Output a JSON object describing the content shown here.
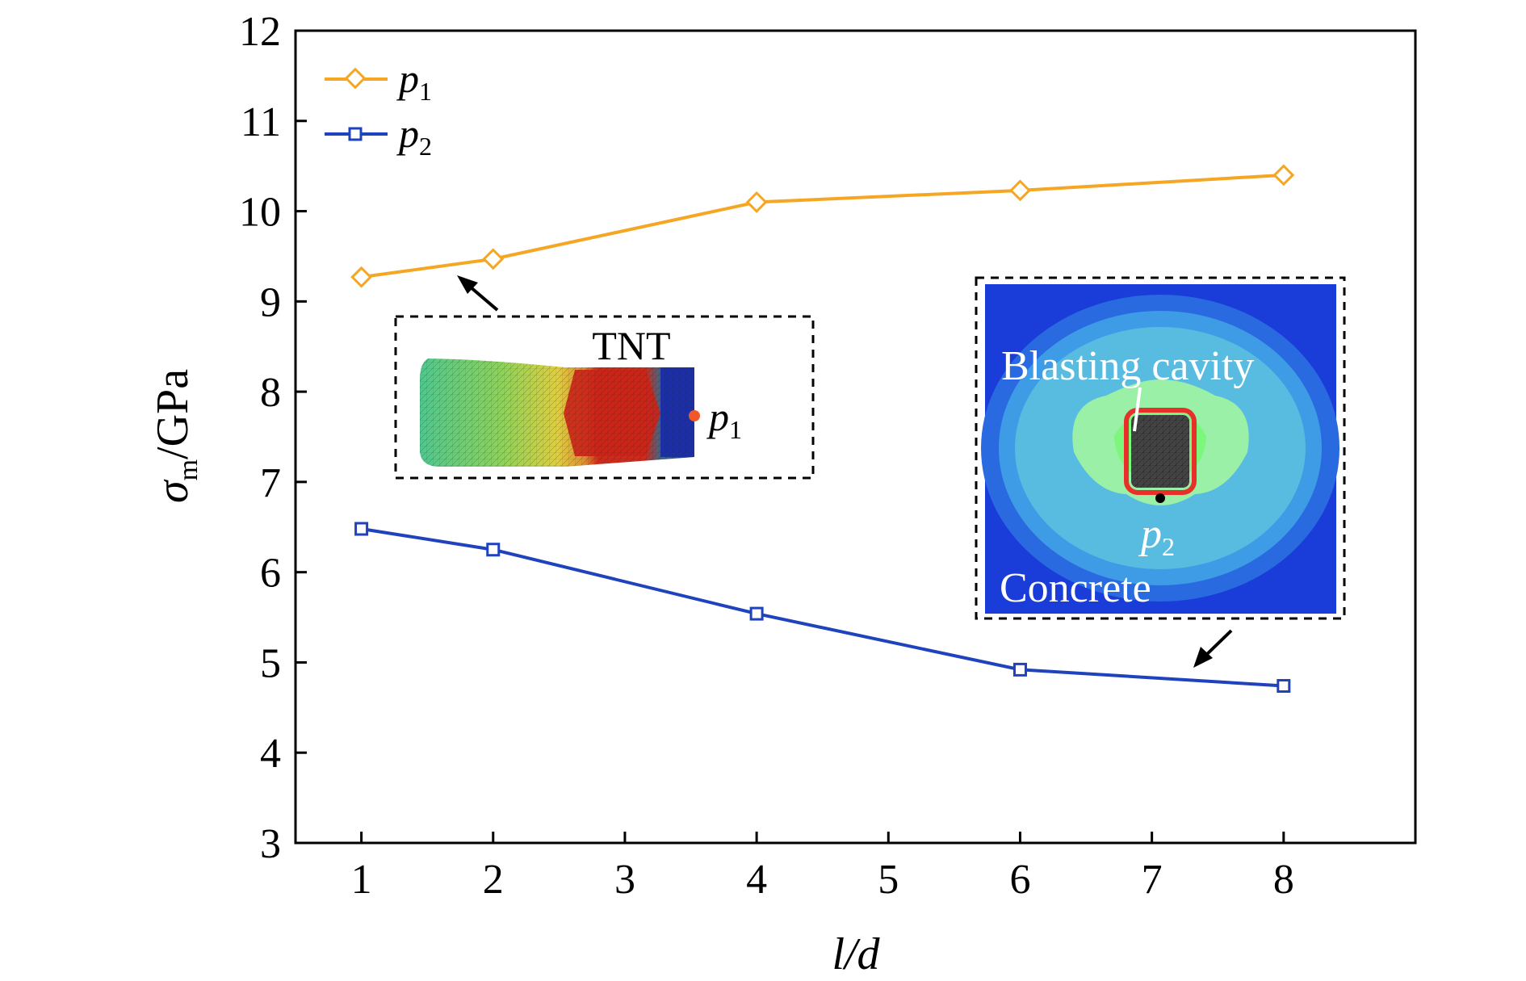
{
  "chart_data": {
    "type": "line",
    "xlabel": "l/d",
    "ylabel_main": "σ",
    "ylabel_sub": "m",
    "ylabel_unit": "/GPa",
    "xlim": [
      0.5,
      9
    ],
    "ylim": [
      3,
      12
    ],
    "xticks": [
      1,
      2,
      3,
      4,
      5,
      6,
      7,
      8
    ],
    "yticks": [
      3,
      4,
      5,
      6,
      7,
      8,
      9,
      10,
      11,
      12
    ],
    "grid": false,
    "legend_position": "top-left",
    "series": [
      {
        "name": "p",
        "name_sub": "1",
        "color": "#F5A623",
        "marker": "diamond",
        "x": [
          1,
          2,
          4,
          6,
          8
        ],
        "values": [
          9.27,
          9.47,
          10.1,
          10.23,
          10.4
        ]
      },
      {
        "name": "p",
        "name_sub": "2",
        "color": "#1F43BD",
        "marker": "square",
        "x": [
          1,
          2,
          4,
          6,
          8
        ],
        "values": [
          6.48,
          6.25,
          5.54,
          4.92,
          4.74
        ]
      }
    ],
    "insets": {
      "tnt": {
        "title": "TNT",
        "point_label": "p",
        "point_sub": "1"
      },
      "concrete": {
        "cavity_label": "Blasting cavity",
        "material_label": "Concrete",
        "point_label": "p",
        "point_sub": "2"
      }
    }
  }
}
